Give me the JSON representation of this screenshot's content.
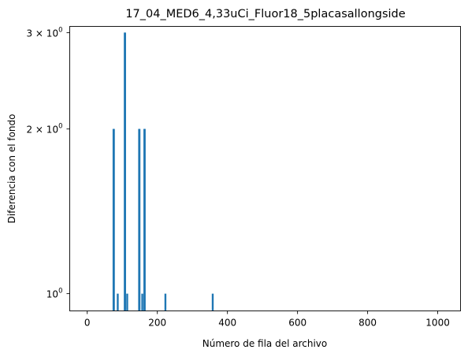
{
  "chart_data": {
    "type": "line",
    "title": "17_04_MED6_4,33uCi_Fluor18_5placasallongside",
    "xlabel": "Número de fila del archivo",
    "ylabel": "Diferencia con el fondo",
    "xlim": [
      -50,
      1065
    ],
    "ylim": [
      0.93,
      3.08
    ],
    "yscale": "log",
    "grid": false,
    "legend": "none",
    "line_color": "#1f77b4",
    "x_ticks": [
      0,
      200,
      400,
      600,
      800,
      1000
    ],
    "x_tick_labels": [
      "0",
      "200",
      "400",
      "600",
      "800",
      "1000"
    ],
    "y_ticks": [
      1,
      2,
      3
    ],
    "y_tick_labels": [
      {
        "base": "10",
        "exp": "0"
      },
      {
        "pre": "2 × ",
        "base": "10",
        "exp": "0"
      },
      {
        "pre": "3 × ",
        "base": "10",
        "exp": "0"
      }
    ],
    "spikes": [
      {
        "x": 75,
        "y": 2
      },
      {
        "x": 76,
        "y": 2
      },
      {
        "x": 87,
        "y": 1
      },
      {
        "x": 107,
        "y": 3
      },
      {
        "x": 108,
        "y": 3
      },
      {
        "x": 114,
        "y": 1
      },
      {
        "x": 148,
        "y": 2
      },
      {
        "x": 149,
        "y": 2
      },
      {
        "x": 157,
        "y": 1
      },
      {
        "x": 163,
        "y": 2
      },
      {
        "x": 164,
        "y": 2
      },
      {
        "x": 223,
        "y": 1
      },
      {
        "x": 358,
        "y": 1
      }
    ]
  }
}
